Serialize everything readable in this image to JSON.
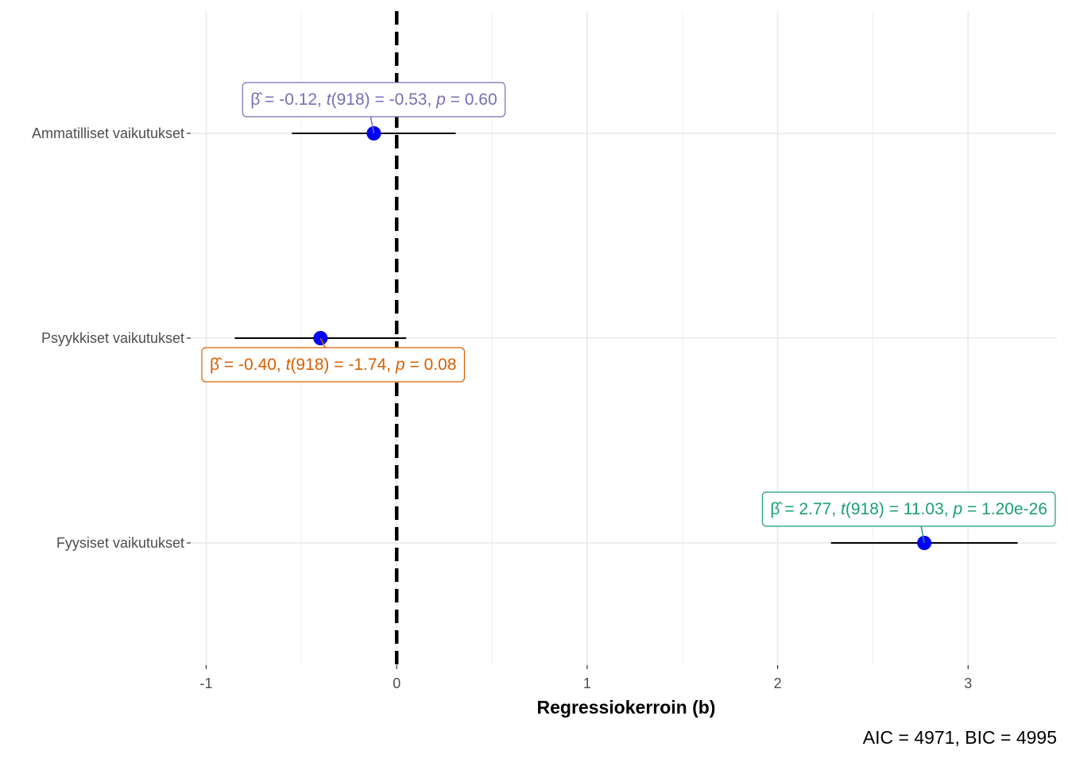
{
  "chart_data": {
    "type": "forest",
    "xlabel": "Regressiokerroin (b)",
    "xlim": [
      -1.1,
      3.45
    ],
    "x_ticks": [
      -1,
      0,
      1,
      2,
      3
    ],
    "x_tick_labels": [
      "-1",
      "0",
      "1",
      "2",
      "3"
    ],
    "reference_line_x": 0,
    "grid": true,
    "caption": "AIC = 4971, BIC = 4995",
    "point_color": "#0000ff",
    "terms": [
      {
        "label": "Ammatilliset vaikutukset",
        "estimate": -0.12,
        "ci_low": -0.55,
        "ci_high": 0.31,
        "annotation_parts": [
          "β̂",
          " = -0.12, ",
          "t",
          "(918) = -0.53, ",
          "p",
          " = 0.60"
        ],
        "annotation_color": "#7570b3",
        "annotation_position": "above"
      },
      {
        "label": "Psyykkiset vaikutukset",
        "estimate": -0.4,
        "ci_low": -0.85,
        "ci_high": 0.05,
        "annotation_parts": [
          "β̂",
          " = -0.40, ",
          "t",
          "(918) = -1.74, ",
          "p",
          " = 0.08"
        ],
        "annotation_color": "#d95f02",
        "annotation_position": "below"
      },
      {
        "label": "Fyysiset vaikutukset",
        "estimate": 2.77,
        "ci_low": 2.28,
        "ci_high": 3.26,
        "annotation_parts": [
          "β̂",
          " = 2.77, ",
          "t",
          "(918) = 11.03, ",
          "p",
          " = 1.20e-26"
        ],
        "annotation_color": "#1b9e77",
        "annotation_position": "above"
      }
    ]
  }
}
